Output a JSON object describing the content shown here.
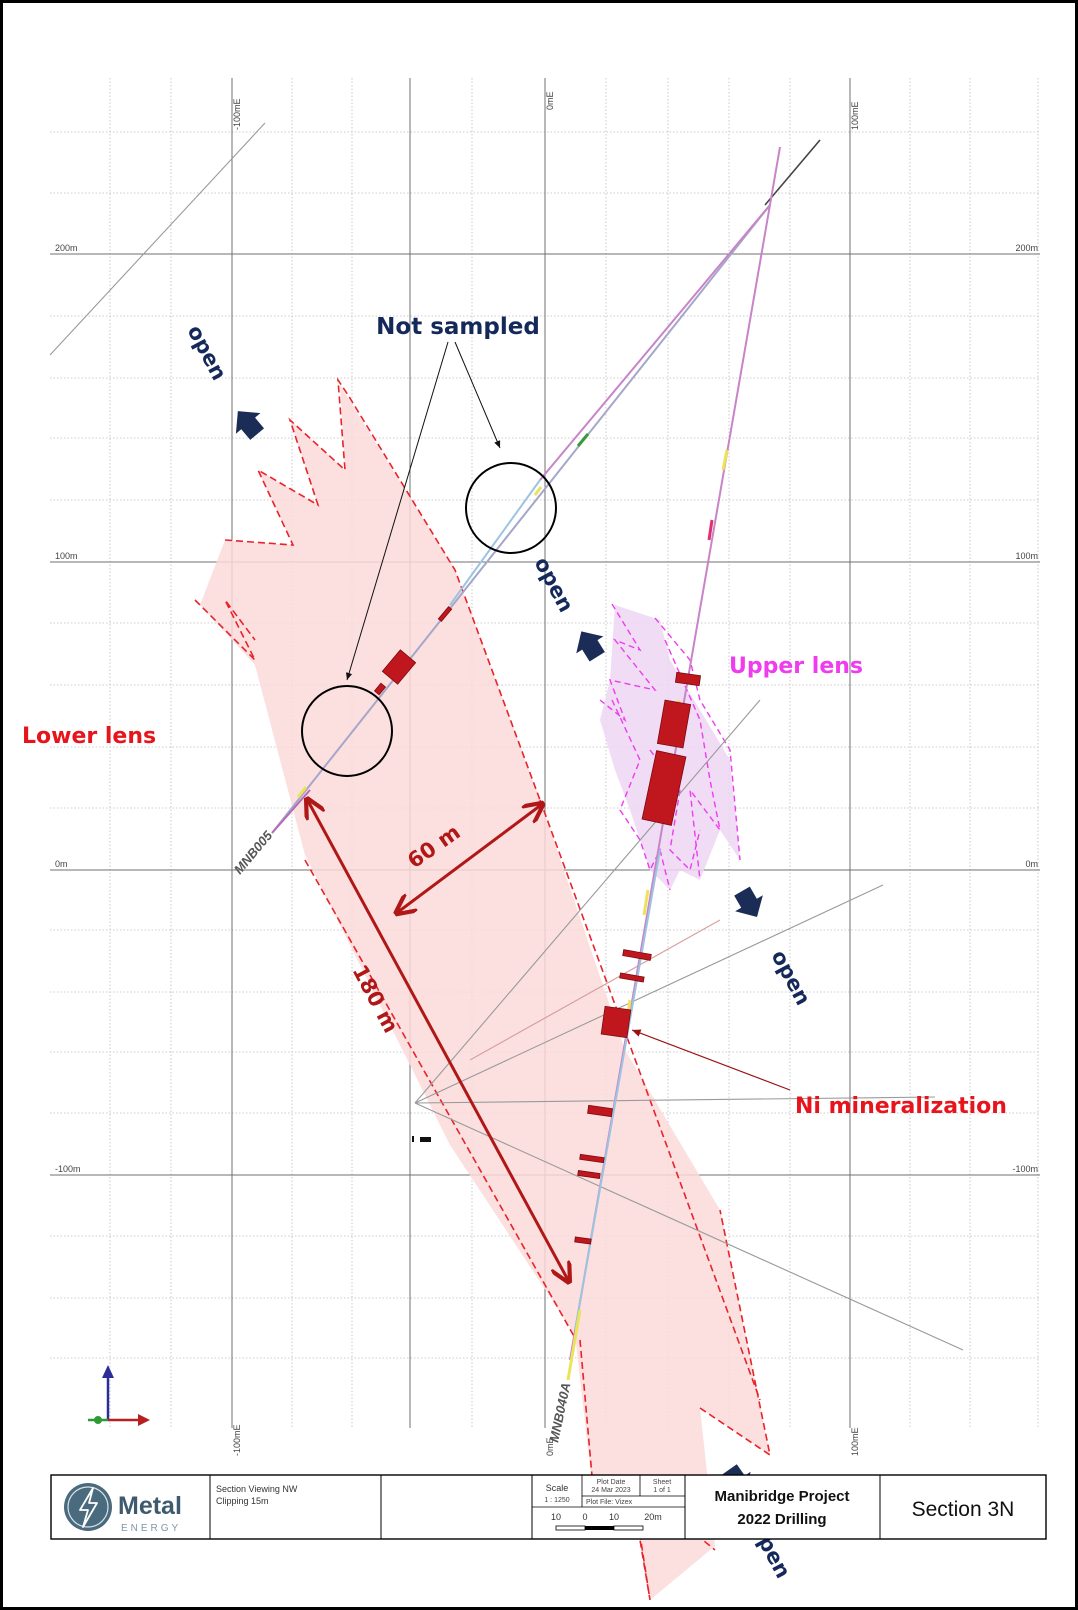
{
  "axes": {
    "easting_top": [
      "-100mE",
      "0mE",
      "100mE"
    ],
    "easting_bottom": [
      "-100mE",
      "0mE",
      "100mE"
    ],
    "elevation_left": [
      "200m",
      "100m",
      "0m",
      "-100m"
    ],
    "elevation_right": [
      "200m",
      "100m",
      "0m",
      "-100m"
    ]
  },
  "callouts": {
    "not_sampled": "Not sampled",
    "upper_lens": "Upper lens",
    "lower_lens": "Lower lens",
    "ni_mineralization": "Ni mineralization",
    "open": "open",
    "width": "60 m",
    "length": "180 m"
  },
  "drillholes": [
    "MNB005",
    "MNB040A"
  ],
  "title_block": {
    "logo_word": "Metal",
    "logo_sub": "ENERGY",
    "view_line1": "Section Viewing NW",
    "view_line2": "Clipping 15m",
    "scale_label": "Scale",
    "scale_value": "1 : 1250",
    "plot_date_label": "Plot Date",
    "plot_date_value": "24 Mar 2023",
    "sheet_label": "Sheet",
    "sheet_value": "1 of 1",
    "plot_file": "Plot File: Vizex",
    "scalebar_ticks": [
      "10",
      "0",
      "10",
      "20m"
    ],
    "project_line1": "Manibridge Project",
    "project_line2": "2022 Drilling",
    "section": "Section 3N"
  },
  "colors": {
    "lower_lens_fill": "#fbd9d9",
    "lower_lens_outline": "#e8232a",
    "upper_lens_fill": "#efd6f3",
    "upper_lens_outline": "#ee3cee",
    "open_arrow": "#1b2d57",
    "measure_arrow": "#b01818",
    "ni_blocks": "#c0161e",
    "callout_navy": "#14285a",
    "callout_red": "#e8141c",
    "callout_magenta": "#ee3cee"
  }
}
